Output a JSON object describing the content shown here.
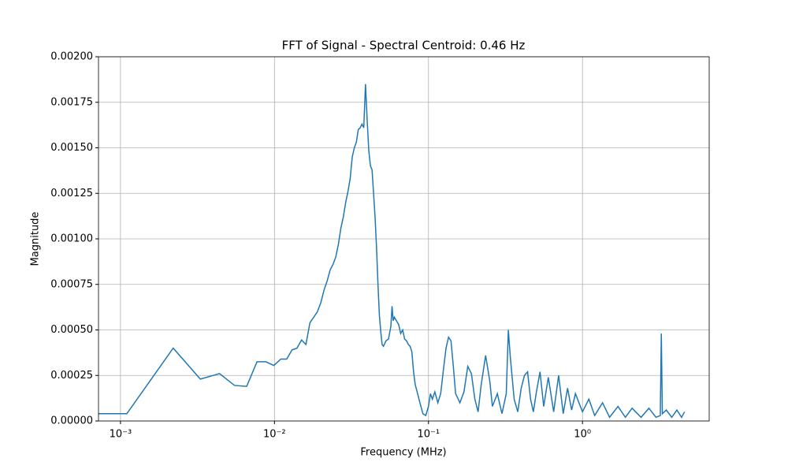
{
  "chart_data": {
    "type": "line",
    "title": "FFT of Signal - Spectral Centroid: 0.46 Hz",
    "xlabel": "Frequency (MHz)",
    "ylabel": "Magnitude",
    "xscale": "log",
    "grid": true,
    "color": "#1f77b4",
    "xlim": [
      0.00072,
      6.65
    ],
    "ylim": [
      0,
      0.002
    ],
    "xticks": [
      {
        "value": 0.001,
        "label": "10⁻³"
      },
      {
        "value": 0.01,
        "label": "10⁻²"
      },
      {
        "value": 0.1,
        "label": "10⁻¹"
      },
      {
        "value": 1,
        "label": "10⁰"
      }
    ],
    "yticks": [
      {
        "value": 0,
        "label": "0.00000"
      },
      {
        "value": 0.00025,
        "label": "0.00025"
      },
      {
        "value": 0.0005,
        "label": "0.00050"
      },
      {
        "value": 0.00075,
        "label": "0.00075"
      },
      {
        "value": 0.001,
        "label": "0.00100"
      },
      {
        "value": 0.00125,
        "label": "0.00125"
      },
      {
        "value": 0.0015,
        "label": "0.00150"
      },
      {
        "value": 0.00175,
        "label": "0.00175"
      },
      {
        "value": 0.002,
        "label": "0.00200"
      }
    ],
    "x": [
      0.0007,
      0.0011,
      0.0022,
      0.0033,
      0.0044,
      0.0055,
      0.0066,
      0.0077,
      0.0088,
      0.0099,
      0.011,
      0.012,
      0.013,
      0.014,
      0.015,
      0.016,
      0.017,
      0.018,
      0.019,
      0.02,
      0.021,
      0.022,
      0.023,
      0.024,
      0.025,
      0.026,
      0.027,
      0.028,
      0.029,
      0.03,
      0.031,
      0.032,
      0.033,
      0.034,
      0.035,
      0.036,
      0.037,
      0.038,
      0.039,
      0.04,
      0.041,
      0.042,
      0.043,
      0.044,
      0.045,
      0.046,
      0.047,
      0.048,
      0.049,
      0.05,
      0.051,
      0.053,
      0.055,
      0.057,
      0.058,
      0.059,
      0.06,
      0.062,
      0.064,
      0.066,
      0.068,
      0.07,
      0.072,
      0.074,
      0.076,
      0.078,
      0.08,
      0.082,
      0.085,
      0.088,
      0.092,
      0.096,
      0.1,
      0.103,
      0.106,
      0.11,
      0.115,
      0.12,
      0.125,
      0.13,
      0.135,
      0.14,
      0.145,
      0.15,
      0.16,
      0.17,
      0.18,
      0.19,
      0.2,
      0.21,
      0.22,
      0.235,
      0.25,
      0.26,
      0.28,
      0.3,
      0.32,
      0.33,
      0.34,
      0.36,
      0.38,
      0.4,
      0.42,
      0.44,
      0.46,
      0.48,
      0.5,
      0.53,
      0.56,
      0.6,
      0.65,
      0.7,
      0.75,
      0.8,
      0.85,
      0.9,
      1.0,
      1.1,
      1.2,
      1.35,
      1.5,
      1.7,
      1.9,
      2.1,
      2.4,
      2.7,
      3.0,
      3.2,
      3.25,
      3.3,
      3.5,
      3.8,
      4.1,
      4.4,
      4.6
    ],
    "values": [
      4e-05,
      4e-05,
      0.0004,
      0.00023,
      0.00026,
      0.000195,
      0.00019,
      0.000325,
      0.000325,
      0.000305,
      0.00034,
      0.00034,
      0.00039,
      0.0004,
      0.000445,
      0.00042,
      0.00054,
      0.00057,
      0.0006,
      0.00065,
      0.00072,
      0.00077,
      0.00083,
      0.00086,
      0.0009,
      0.00097,
      0.00106,
      0.00112,
      0.0012,
      0.00126,
      0.00133,
      0.00145,
      0.0015,
      0.00153,
      0.0016,
      0.00161,
      0.00163,
      0.00161,
      0.00185,
      0.00165,
      0.00148,
      0.0014,
      0.00138,
      0.00125,
      0.00112,
      0.00095,
      0.00075,
      0.00058,
      0.00049,
      0.00042,
      0.00041,
      0.00044,
      0.00045,
      0.00052,
      0.00063,
      0.00055,
      0.00057,
      0.00055,
      0.00053,
      0.00048,
      0.0005,
      0.00045,
      0.00044,
      0.00042,
      0.00041,
      0.00038,
      0.00027,
      0.0002,
      0.00015,
      0.0001,
      4e-05,
      3e-05,
      8e-05,
      0.00015,
      0.00012,
      0.00016,
      0.0001,
      0.00015,
      0.00028,
      0.0004,
      0.00046,
      0.00044,
      0.0003,
      0.00015,
      0.0001,
      0.00016,
      0.0003,
      0.00026,
      0.00012,
      5e-05,
      0.0002,
      0.00036,
      0.00022,
      8e-05,
      0.00015,
      4e-05,
      0.00015,
      0.0005,
      0.00035,
      0.00012,
      5e-05,
      0.00018,
      0.00025,
      0.00027,
      0.00012,
      5e-05,
      0.00015,
      0.00027,
      8e-05,
      0.00024,
      5e-05,
      0.00025,
      4e-05,
      0.00018,
      6e-05,
      0.00015,
      5e-05,
      0.00012,
      3e-05,
      0.0001,
      2e-05,
      8e-05,
      2e-05,
      7e-05,
      2e-05,
      7e-05,
      2e-05,
      3e-05,
      0.00048,
      4e-05,
      6e-05,
      2e-05,
      6e-05,
      2e-05,
      5e-05
    ]
  }
}
